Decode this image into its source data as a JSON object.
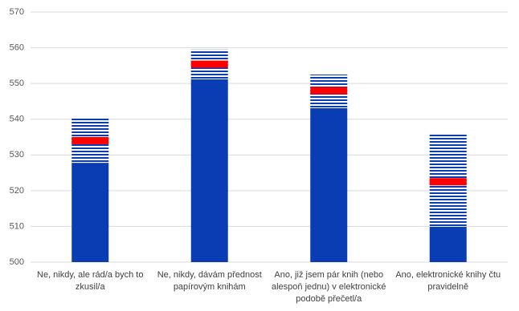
{
  "chart_data": {
    "type": "bar",
    "categories": [
      "Ne, nikdy, ale rád/a bych to zkusil/a",
      "Ne, nikdy, dávám přednost papírovým knihám",
      "Ano, již jsem pár knih (nebo alespoň jednu) v elektronické podobě přečetl/a",
      "Ano, elektronické knihy čtu pravidelně"
    ],
    "low": [
      527.8,
      551.2,
      543.1,
      509.9
    ],
    "mean": [
      534.0,
      555.4,
      548.0,
      522.5
    ],
    "high": [
      540.2,
      559.5,
      552.5,
      535.7
    ],
    "color": "#0a3cb4",
    "mean_color": "#ff0000",
    "ylim": [
      500,
      570
    ],
    "yticks": [
      500,
      510,
      520,
      530,
      540,
      550,
      560,
      570
    ],
    "grid": true
  }
}
